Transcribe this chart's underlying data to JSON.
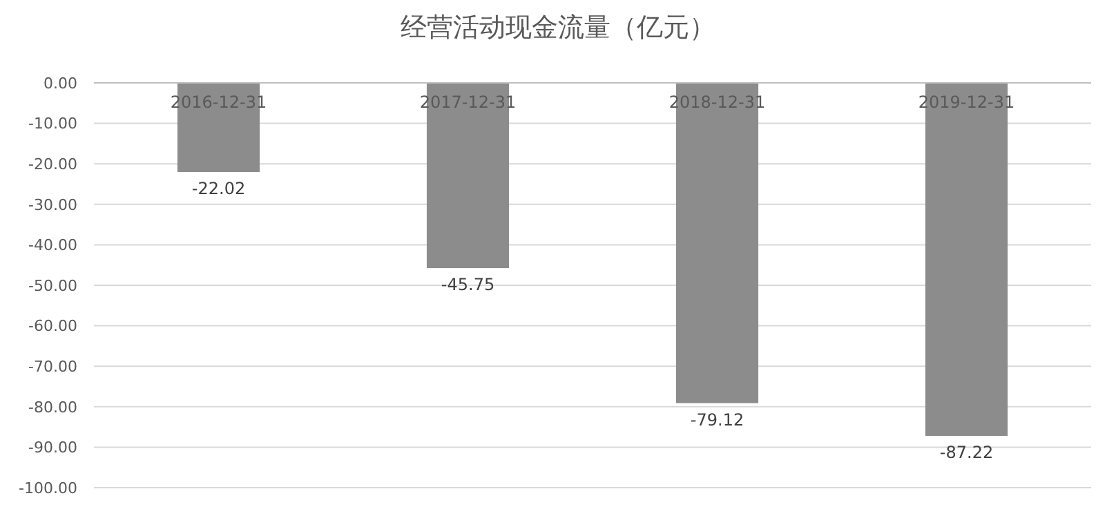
{
  "chart_data": {
    "type": "bar",
    "title": "经营活动现金流量（亿元）",
    "categories": [
      "2016-12-31",
      "2017-12-31",
      "2018-12-31",
      "2019-12-31"
    ],
    "series": [
      {
        "color": "#8c8c8c",
        "values": [
          -22.02,
          -45.75,
          -79.12,
          -87.22
        ]
      }
    ],
    "ylim": [
      -100,
      0
    ],
    "yticks": [
      {
        "value": 0,
        "label": "0.00"
      },
      {
        "value": -10,
        "label": "-10.00"
      },
      {
        "value": -20,
        "label": "-20.00"
      },
      {
        "value": -30,
        "label": "-30.00"
      },
      {
        "value": -40,
        "label": "-40.00"
      },
      {
        "value": -50,
        "label": "-50.00"
      },
      {
        "value": -60,
        "label": "-60.00"
      },
      {
        "value": -70,
        "label": "-70.00"
      },
      {
        "value": -80,
        "label": "-80.00"
      },
      {
        "value": -90,
        "label": "-90.00"
      },
      {
        "value": -100,
        "label": "-100.00"
      }
    ],
    "grid": "y",
    "data_labels": true
  }
}
